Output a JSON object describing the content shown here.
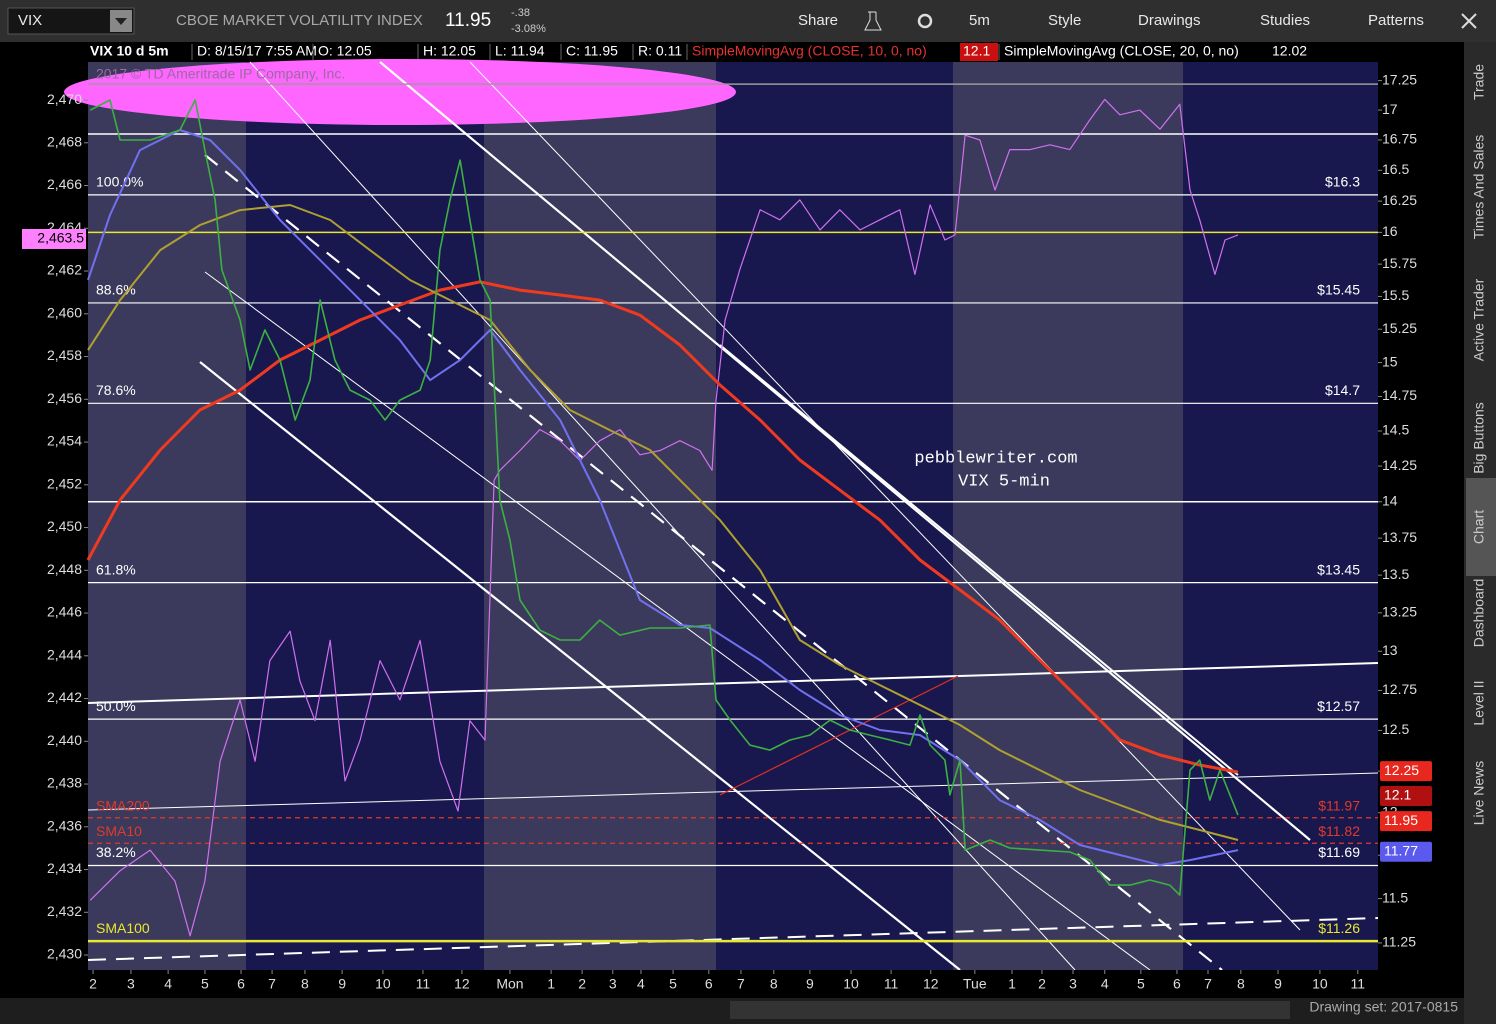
{
  "toolbar": {
    "symbol": "VIX",
    "description": "CBOE MARKET VOLATILITY INDEX",
    "last": "11.95",
    "change": "-.38",
    "change_pct": "-3.08%",
    "buttons": [
      "Share",
      "5m",
      "Style",
      "Drawings",
      "Studies",
      "Patterns"
    ]
  },
  "header": {
    "items": [
      "VIX 10 d 5m",
      "D: 8/15/17 7:55 AM",
      "O: 12.05",
      "H: 12.05",
      "L: 11.94",
      "C: 11.95",
      "R: 0.11",
      "SimpleMovingAvg (CLOSE, 10, 0, no)",
      "12.1",
      "SimpleMovingAvg (CLOSE, 20, 0, no)",
      "12.02"
    ]
  },
  "chart_data": {
    "type": "line",
    "watermark": "2017 © TD Ameritrade IP Company, Inc.",
    "annotations": [
      "pebblewriter.com",
      "VIX 5-min"
    ],
    "xlim": [
      -0.14,
      35.6
    ],
    "xticks": [
      {
        "value": 0,
        "label": "2"
      },
      {
        "value": 1.05,
        "label": "3"
      },
      {
        "value": 2.08,
        "label": "4"
      },
      {
        "value": 3.1,
        "label": "5"
      },
      {
        "value": 4.1,
        "label": "6"
      },
      {
        "value": 4.96,
        "label": "7"
      },
      {
        "value": 5.87,
        "label": "8"
      },
      {
        "value": 6.9,
        "label": "9"
      },
      {
        "value": 8.03,
        "label": "10"
      },
      {
        "value": 9.14,
        "label": "11"
      },
      {
        "value": 10.22,
        "label": "12"
      },
      {
        "value": 11.55,
        "label": "Mon"
      },
      {
        "value": 12.69,
        "label": "1"
      },
      {
        "value": 13.55,
        "label": "2"
      },
      {
        "value": 14.4,
        "label": "3"
      },
      {
        "value": 15.18,
        "label": "4"
      },
      {
        "value": 16.07,
        "label": "5"
      },
      {
        "value": 17.06,
        "label": "6"
      },
      {
        "value": 17.95,
        "label": "7"
      },
      {
        "value": 18.86,
        "label": "8"
      },
      {
        "value": 19.86,
        "label": "9"
      },
      {
        "value": 21.0,
        "label": "10"
      },
      {
        "value": 22.11,
        "label": "11"
      },
      {
        "value": 23.21,
        "label": "12"
      },
      {
        "value": 24.43,
        "label": "Tue"
      },
      {
        "value": 25.46,
        "label": "1"
      },
      {
        "value": 26.29,
        "label": "2"
      },
      {
        "value": 27.15,
        "label": "3"
      },
      {
        "value": 28.03,
        "label": "4"
      },
      {
        "value": 29.03,
        "label": "5"
      },
      {
        "value": 30.03,
        "label": "6"
      },
      {
        "value": 30.89,
        "label": "7"
      },
      {
        "value": 31.8,
        "label": "8"
      },
      {
        "value": 32.83,
        "label": "9"
      },
      {
        "value": 33.99,
        "label": "10"
      },
      {
        "value": 35.04,
        "label": "11"
      }
    ],
    "ylim": [
      2429.3,
      2471.78
    ],
    "yticks": [
      {
        "value": 2430,
        "label": "2,430"
      },
      {
        "value": 2432,
        "label": "2,432"
      },
      {
        "value": 2434,
        "label": "2,434"
      },
      {
        "value": 2436,
        "label": "2,436"
      },
      {
        "value": 2438,
        "label": "2,438"
      },
      {
        "value": 2440,
        "label": "2,440"
      },
      {
        "value": 2442,
        "label": "2,442"
      },
      {
        "value": 2444,
        "label": "2,444"
      },
      {
        "value": 2446,
        "label": "2,446"
      },
      {
        "value": 2448,
        "label": "2,448"
      },
      {
        "value": 2450,
        "label": "2,450"
      },
      {
        "value": 2452,
        "label": "2,452"
      },
      {
        "value": 2454,
        "label": "2,454"
      },
      {
        "value": 2456,
        "label": "2,456"
      },
      {
        "value": 2458,
        "label": "2,458"
      },
      {
        "value": 2460,
        "label": "2,460"
      },
      {
        "value": 2462,
        "label": "2,462"
      },
      {
        "value": 2464,
        "label": "2,464"
      },
      {
        "value": 2466,
        "label": "2,466"
      },
      {
        "value": 2468,
        "label": "2,468"
      },
      {
        "value": 2470,
        "label": "2,470"
      }
    ],
    "y2lim": [
      11.1,
      17.41
    ],
    "y2_log": true,
    "y2ticks": [
      11.25,
      11.5,
      11.75,
      12,
      12.25,
      12.5,
      12.75,
      13,
      13.25,
      13.5,
      13.75,
      14,
      14.25,
      14.5,
      14.75,
      15,
      15.25,
      15.5,
      15.75,
      16,
      16.25,
      16.5,
      16.75,
      17,
      17.25
    ],
    "grid": false,
    "series": [
      {
        "color": "#d070f0",
        "axis": "y2",
        "width": 1.2,
        "x": [
          -0.08,
          0.75,
          1.58,
          2.27,
          2.69,
          3.1,
          3.52,
          4.07,
          4.49,
          4.9,
          5.46,
          5.73,
          6.15,
          6.57,
          6.98,
          7.4,
          7.95,
          8.5,
          9.06,
          9.61,
          10.11,
          10.44,
          10.86,
          11.11,
          11.27,
          11.83,
          12.38,
          12.94,
          13.49,
          14.04,
          14.6,
          15.15,
          15.71,
          16.26,
          16.81,
          17.15,
          17.26,
          17.51,
          17.92,
          18.48,
          19.03,
          19.58,
          20.14,
          20.69,
          21.25,
          21.8,
          22.35,
          22.77,
          23.19,
          23.6,
          23.88,
          24.16,
          24.57,
          24.99,
          25.4,
          25.96,
          26.51,
          27.06,
          27.62,
          28.03,
          28.45,
          29.0,
          29.56,
          30.11,
          30.39,
          30.66,
          31.08,
          31.36,
          31.72
        ],
        "values": [
          11.49,
          11.66,
          11.78,
          11.6,
          11.29,
          11.6,
          12.31,
          12.69,
          12.31,
          12.94,
          13.13,
          12.81,
          12.56,
          13.07,
          12.19,
          12.44,
          12.94,
          12.69,
          13.07,
          12.31,
          12.01,
          12.56,
          12.44,
          14.15,
          14.22,
          14.36,
          14.51,
          14.43,
          14.29,
          14.43,
          14.51,
          14.33,
          14.36,
          14.43,
          14.36,
          14.22,
          14.72,
          15.32,
          15.71,
          16.18,
          16.1,
          16.26,
          16.02,
          16.18,
          16.02,
          16.1,
          16.18,
          15.67,
          16.22,
          15.94,
          15.98,
          16.79,
          16.75,
          16.34,
          16.67,
          16.67,
          16.71,
          16.67,
          16.92,
          17.09,
          16.96,
          17.0,
          16.84,
          17.05,
          16.34,
          16.1,
          15.67,
          15.94,
          15.98
        ]
      },
      {
        "color": "#f03a20",
        "axis": "y",
        "width": 3,
        "x": [
          -0.14,
          0.75,
          1.86,
          2.96,
          4.07,
          5.18,
          6.29,
          7.4,
          8.5,
          9.61,
          10.72,
          11.83,
          12.94,
          14.04,
          15.15,
          16.26,
          17.37,
          18.48,
          19.58,
          20.69,
          21.8,
          22.91,
          24.02,
          25.12,
          26.23,
          27.34,
          28.45,
          29.56,
          30.66,
          31.72
        ],
        "values": [
          2448.48,
          2451.29,
          2453.63,
          2455.5,
          2456.43,
          2457.84,
          2458.77,
          2459.71,
          2460.41,
          2461.11,
          2461.49,
          2461.11,
          2460.88,
          2460.64,
          2459.94,
          2458.54,
          2456.67,
          2455.03,
          2453.16,
          2451.75,
          2450.35,
          2448.48,
          2447.08,
          2445.67,
          2443.8,
          2441.93,
          2440.06,
          2439.36,
          2438.89,
          2438.56
        ]
      },
      {
        "color": "#b0a030",
        "axis": "y",
        "width": 2,
        "x": [
          -0.14,
          0.75,
          1.86,
          2.96,
          4.07,
          5.46,
          6.57,
          7.67,
          8.78,
          9.89,
          11.0,
          12.11,
          13.21,
          14.32,
          15.43,
          16.54,
          17.37,
          18.48,
          19.58,
          20.69,
          21.8,
          22.91,
          24.02,
          25.12,
          26.23,
          27.34,
          28.45,
          29.56,
          30.66,
          31.72
        ],
        "values": [
          2458.3,
          2460.64,
          2462.98,
          2464.15,
          2464.85,
          2465.09,
          2464.39,
          2462.98,
          2461.58,
          2460.64,
          2459.71,
          2457.37,
          2455.5,
          2454.56,
          2453.63,
          2451.75,
          2450.35,
          2448.01,
          2444.74,
          2443.57,
          2442.63,
          2441.7,
          2440.76,
          2439.59,
          2438.65,
          2437.72,
          2437.02,
          2436.32,
          2435.85,
          2435.38
        ]
      },
      {
        "color": "#7070f0",
        "axis": "y",
        "width": 2,
        "x": [
          -0.14,
          0.47,
          1.3,
          2.41,
          3.24,
          4.07,
          5.18,
          6.29,
          7.4,
          8.5,
          9.34,
          10.17,
          11.0,
          11.83,
          12.94,
          14.04,
          15.15,
          16.26,
          17.09,
          18.48,
          19.58,
          20.69,
          21.8,
          22.91,
          24.02,
          25.12,
          26.23,
          27.34,
          28.45,
          29.56,
          30.39,
          31.72
        ],
        "values": [
          2461.58,
          2464.62,
          2467.66,
          2468.6,
          2468.13,
          2466.73,
          2464.39,
          2462.51,
          2460.64,
          2458.77,
          2456.9,
          2457.84,
          2459.24,
          2457.37,
          2455.03,
          2451.29,
          2446.61,
          2445.44,
          2445.3,
          2443.8,
          2442.4,
          2441.23,
          2440.53,
          2440.29,
          2439.12,
          2437.25,
          2436.32,
          2435.15,
          2434.68,
          2434.21,
          2434.44,
          2434.91
        ]
      },
      {
        "color": "#3cb043",
        "axis": "y",
        "width": 1.6,
        "x": [
          -0.08,
          0.47,
          0.75,
          1.58,
          2.41,
          2.83,
          3.1,
          3.38,
          3.57,
          4.07,
          4.35,
          4.76,
          5.18,
          5.6,
          6.01,
          6.29,
          6.7,
          7.12,
          7.67,
          8.09,
          8.5,
          9.06,
          9.34,
          9.61,
          9.89,
          10.17,
          10.44,
          10.72,
          11.0,
          11.27,
          11.55,
          11.83,
          12.38,
          12.94,
          13.49,
          14.04,
          14.6,
          15.43,
          16.26,
          17.09,
          17.26,
          17.65,
          18.2,
          18.75,
          19.31,
          19.86,
          20.42,
          20.97,
          21.52,
          22.08,
          22.63,
          22.91,
          23.19,
          23.6,
          23.74,
          24.02,
          24.16,
          24.85,
          25.4,
          26.23,
          27.06,
          27.62,
          28.17,
          28.73,
          29.28,
          29.83,
          30.11,
          30.39,
          30.66,
          30.94,
          31.22,
          31.72
        ],
        "values": [
          2469.53,
          2470,
          2468.13,
          2468.13,
          2468.6,
          2470,
          2467.66,
          2465.32,
          2462.05,
          2459.71,
          2457.37,
          2459.24,
          2457.84,
          2455.03,
          2456.9,
          2460.64,
          2457.84,
          2456.43,
          2455.96,
          2455.03,
          2455.96,
          2456.43,
          2457.84,
          2462.98,
          2465.32,
          2467.19,
          2464.39,
          2461.58,
          2460.64,
          2451.29,
          2449.42,
          2446.61,
          2445.2,
          2444.74,
          2444.74,
          2445.67,
          2444.97,
          2445.3,
          2445.3,
          2445.44,
          2441.93,
          2440.99,
          2439.82,
          2439.59,
          2440.06,
          2440.29,
          2440.99,
          2440.53,
          2440.29,
          2440.06,
          2439.82,
          2441.23,
          2439.82,
          2439.12,
          2437.49,
          2439.12,
          2434.91,
          2435.38,
          2435.01,
          2434.91,
          2434.82,
          2434.44,
          2433.27,
          2433.27,
          2433.51,
          2433.27,
          2432.81,
          2438.65,
          2439.12,
          2437.25,
          2438.65,
          2436.55
        ]
      }
    ],
    "extra_levels": {
      "values": [
        17.22,
        16.8,
        16.0,
        14.0
      ],
      "colors": [
        "#9a9a9a",
        "#ffffff",
        "#e8e830",
        "#ffffff"
      ]
    },
    "fib_levels": {
      "names": [
        "100.0%",
        "88.6%",
        "78.6%",
        "61.8%",
        "50.0%",
        "38.2%",
        "SMA100"
      ],
      "values": [
        16.3,
        15.45,
        14.7,
        13.45,
        12.57,
        11.69,
        11.26
      ],
      "value_labels": [
        "$16.3",
        "$15.45",
        "$14.7",
        "$13.45",
        "$12.57",
        "$11.69",
        "$11.26"
      ],
      "colors": [
        "#ffffff",
        "#ffffff",
        "#ffffff",
        "#ffffff",
        "#ffffff",
        "#ffffff",
        "#e8e830"
      ]
    },
    "sma_levels": {
      "names": [
        "SMA200",
        "SMA10"
      ],
      "values": [
        11.97,
        11.82
      ],
      "value_labels": [
        "$11.97",
        "$11.82"
      ],
      "color": "#e03a2a"
    },
    "price_boxes": {
      "values": [
        12.25,
        12.1,
        11.95,
        11.77
      ],
      "colors": [
        "#e8281e",
        "#b01010",
        "#e8281e",
        "#5a5aee"
      ]
    },
    "left_box": {
      "value": 2463.5,
      "value_label": "2,463.5",
      "color": "#ff80ff"
    }
  },
  "side_tabs": [
    "Trade",
    "Times And Sales",
    "Active Trader",
    "Big Buttons",
    "Chart",
    "Dashboard",
    "Level II",
    "Live News"
  ],
  "footer": {
    "drawing_set": "Drawing set: 2017-0815"
  }
}
